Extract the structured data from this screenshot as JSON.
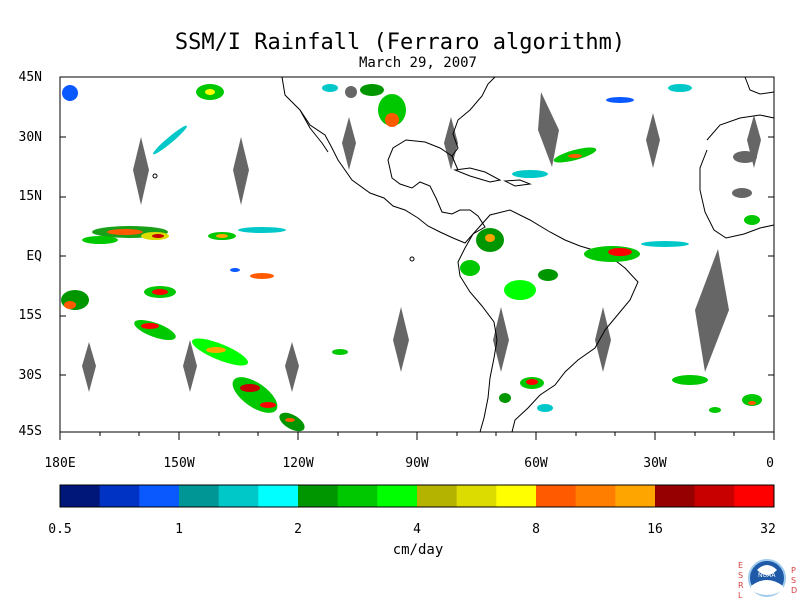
{
  "title": "SSM/I Rainfall (Ferraro algorithm)",
  "subtitle": "March 29, 2007",
  "map": {
    "lat_labels": [
      "45N",
      "30N",
      "15N",
      "EQ",
      "15S",
      "30S",
      "45S"
    ],
    "lon_labels": [
      "180E",
      "150W",
      "120W",
      "90W",
      "60W",
      "30W",
      "0"
    ],
    "gap_color": "#666666",
    "coast_color": "#000000"
  },
  "colorbar": {
    "colors": [
      "#00177a",
      "#0033c4",
      "#0a59ff",
      "#009696",
      "#00c8c8",
      "#00ffff",
      "#009600",
      "#00c800",
      "#00ff00",
      "#b4b400",
      "#dcdc00",
      "#ffff00",
      "#ff5a00",
      "#ff7e00",
      "#ffa500",
      "#960000",
      "#c80000",
      "#ff0000"
    ],
    "tick_labels": [
      "0.5",
      "1",
      "2",
      "4",
      "8",
      "16",
      "32"
    ],
    "units": "cm/day"
  },
  "logo": {
    "left_letters": [
      "E",
      "S",
      "R",
      "L"
    ],
    "right_letters": [
      "P",
      "S",
      "D"
    ],
    "center_text": "NOAA"
  }
}
